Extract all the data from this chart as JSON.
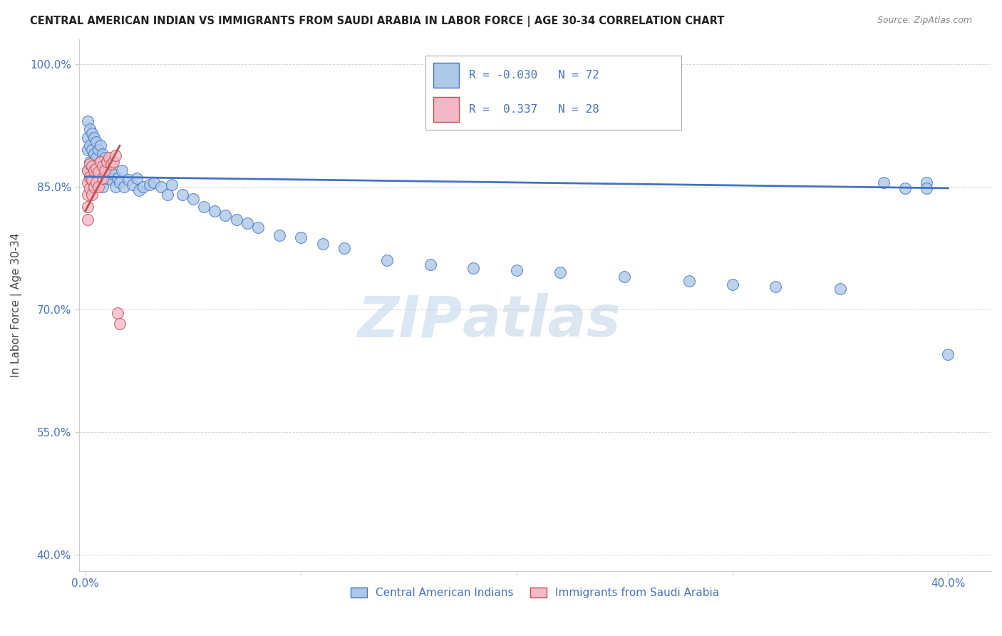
{
  "title": "CENTRAL AMERICAN INDIAN VS IMMIGRANTS FROM SAUDI ARABIA IN LABOR FORCE | AGE 30-34 CORRELATION CHART",
  "source": "Source: ZipAtlas.com",
  "ylabel": "In Labor Force | Age 30-34",
  "legend_label1": "Central American Indians",
  "legend_label2": "Immigrants from Saudi Arabia",
  "R1": -0.03,
  "N1": 72,
  "R2": 0.337,
  "N2": 28,
  "color_blue": "#adc8e8",
  "color_pink": "#f4b8c8",
  "color_blue_line": "#4472c4",
  "color_pink_line": "#c0504d",
  "watermark_zip": "ZIP",
  "watermark_atlas": "atlas",
  "blue_scatter_x": [
    0.001,
    0.001,
    0.001,
    0.001,
    0.002,
    0.002,
    0.002,
    0.002,
    0.003,
    0.003,
    0.003,
    0.004,
    0.004,
    0.004,
    0.005,
    0.005,
    0.005,
    0.006,
    0.006,
    0.007,
    0.007,
    0.008,
    0.008,
    0.008,
    0.009,
    0.01,
    0.01,
    0.011,
    0.012,
    0.013,
    0.014,
    0.015,
    0.016,
    0.017,
    0.018,
    0.02,
    0.022,
    0.024,
    0.025,
    0.027,
    0.03,
    0.032,
    0.035,
    0.038,
    0.04,
    0.045,
    0.05,
    0.055,
    0.06,
    0.065,
    0.07,
    0.075,
    0.08,
    0.09,
    0.1,
    0.11,
    0.12,
    0.14,
    0.16,
    0.18,
    0.2,
    0.22,
    0.25,
    0.28,
    0.3,
    0.32,
    0.35,
    0.37,
    0.38,
    0.39,
    0.39,
    0.4
  ],
  "blue_scatter_y": [
    0.93,
    0.91,
    0.895,
    0.87,
    0.92,
    0.9,
    0.88,
    0.86,
    0.915,
    0.895,
    0.875,
    0.91,
    0.89,
    0.87,
    0.905,
    0.885,
    0.865,
    0.895,
    0.875,
    0.9,
    0.88,
    0.89,
    0.87,
    0.85,
    0.885,
    0.875,
    0.86,
    0.87,
    0.858,
    0.865,
    0.85,
    0.86,
    0.855,
    0.87,
    0.85,
    0.858,
    0.852,
    0.86,
    0.845,
    0.85,
    0.852,
    0.855,
    0.85,
    0.84,
    0.852,
    0.84,
    0.835,
    0.825,
    0.82,
    0.815,
    0.81,
    0.805,
    0.8,
    0.79,
    0.788,
    0.78,
    0.775,
    0.76,
    0.755,
    0.75,
    0.748,
    0.745,
    0.74,
    0.735,
    0.73,
    0.728,
    0.725,
    0.855,
    0.848,
    0.855,
    0.848,
    0.645
  ],
  "pink_scatter_x": [
    0.001,
    0.001,
    0.001,
    0.001,
    0.001,
    0.002,
    0.002,
    0.002,
    0.003,
    0.003,
    0.003,
    0.004,
    0.004,
    0.005,
    0.005,
    0.006,
    0.006,
    0.007,
    0.008,
    0.008,
    0.009,
    0.01,
    0.011,
    0.012,
    0.013,
    0.014,
    0.015,
    0.016
  ],
  "pink_scatter_y": [
    0.87,
    0.855,
    0.84,
    0.825,
    0.81,
    0.878,
    0.862,
    0.848,
    0.875,
    0.858,
    0.84,
    0.87,
    0.85,
    0.872,
    0.855,
    0.868,
    0.85,
    0.88,
    0.875,
    0.86,
    0.87,
    0.88,
    0.885,
    0.878,
    0.88,
    0.888,
    0.695,
    0.682
  ],
  "ylim": [
    0.38,
    1.03
  ],
  "xlim": [
    -0.003,
    0.42
  ],
  "yticks": [
    0.4,
    0.55,
    0.7,
    0.85,
    1.0
  ],
  "ytick_labels": [
    "40.0%",
    "55.0%",
    "70.0%",
    "85.0%",
    "100.0%"
  ],
  "xtick_positions": [
    0.0,
    0.1,
    0.2,
    0.3,
    0.4
  ],
  "xtick_labels": [
    "0.0%",
    "",
    "",
    "",
    "40.0%"
  ],
  "blue_trend_x": [
    0.0,
    0.4
  ],
  "blue_trend_y": [
    0.862,
    0.848
  ],
  "pink_trend_x": [
    0.0,
    0.016
  ],
  "pink_trend_y": [
    0.82,
    0.9
  ]
}
